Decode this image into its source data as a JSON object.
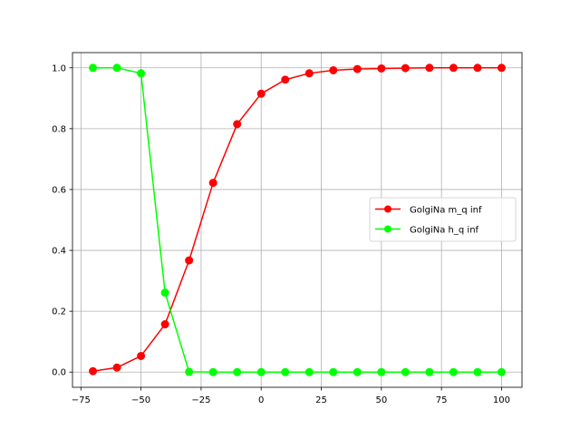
{
  "chart_data": {
    "type": "line",
    "title": "",
    "xlabel": "",
    "ylabel": "",
    "xlim": [
      -78.5,
      108.5
    ],
    "ylim": [
      -0.05,
      1.05
    ],
    "grid": true,
    "legend_position": "center-right",
    "x_ticks": [
      -75,
      -50,
      -25,
      0,
      25,
      50,
      75,
      100
    ],
    "x_tick_labels": [
      "−75",
      "−50",
      "−25",
      "0",
      "25",
      "50",
      "75",
      "100"
    ],
    "y_ticks": [
      0.0,
      0.2,
      0.4,
      0.6,
      0.8,
      1.0
    ],
    "y_tick_labels": [
      "0.0",
      "0.2",
      "0.4",
      "0.6",
      "0.8",
      "1.0"
    ],
    "x": [
      -70,
      -60,
      -50,
      -40,
      -30,
      -20,
      -10,
      0,
      10,
      20,
      30,
      40,
      50,
      60,
      70,
      80,
      90,
      100
    ],
    "series": [
      {
        "name": "GolgiNa m_q inf",
        "color": "#ff0000",
        "values": [
          0.003,
          0.015,
          0.053,
          0.157,
          0.367,
          0.622,
          0.815,
          0.915,
          0.961,
          0.982,
          0.992,
          0.996,
          0.998,
          0.999,
          1.0,
          1.0,
          1.0,
          1.0
        ]
      },
      {
        "name": "GolgiNa h_q inf",
        "color": "#00ff00",
        "values": [
          1.0,
          1.0,
          0.982,
          0.261,
          0.001,
          0.0,
          0.0,
          0.0,
          0.0,
          0.0,
          0.0,
          0.0,
          0.0,
          0.0,
          0.0,
          0.0,
          0.0,
          0.0
        ]
      }
    ]
  }
}
